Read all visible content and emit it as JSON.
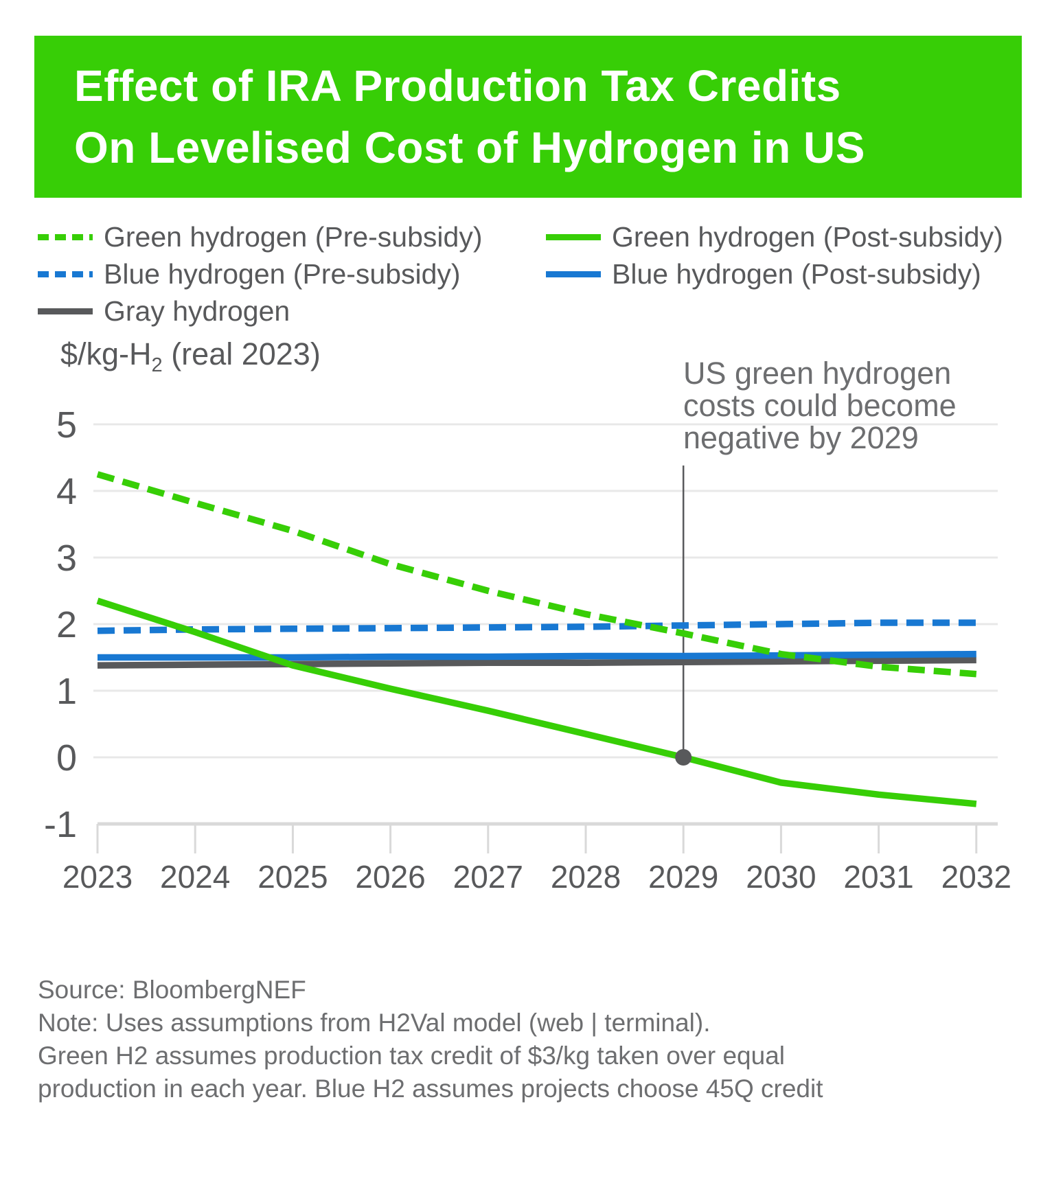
{
  "header": {
    "title_line1": "Effect of IRA Production Tax Credits",
    "title_line2": "On Levelised Cost of Hydrogen in US"
  },
  "legend": {
    "items": [
      {
        "label": "Green hydrogen (Pre-subsidy)",
        "style": "dashed",
        "color": "green"
      },
      {
        "label": "Green hydrogen (Post-subsidy)",
        "style": "solid",
        "color": "green"
      },
      {
        "label": "Blue hydrogen (Pre-subsidy)",
        "style": "dashed",
        "color": "blue"
      },
      {
        "label": "Blue hydrogen (Post-subsidy)",
        "style": "solid",
        "color": "blue"
      },
      {
        "label": "Gray hydrogen",
        "style": "solid",
        "color": "gray"
      }
    ]
  },
  "colors": {
    "green": "#37CE06",
    "blue": "#1878D2",
    "gray": "#58595B",
    "grid": "#E8E8E8",
    "axis": "#D9D9D9",
    "text_dark": "#58595B",
    "text_mid": "#6D6E70",
    "banner_bg": "#37CE06",
    "banner_text": "#FFFFFF",
    "marker": "#58595B"
  },
  "chart_data": {
    "type": "line",
    "x": [
      2023,
      2024,
      2025,
      2026,
      2027,
      2028,
      2029,
      2030,
      2031,
      2032
    ],
    "series": [
      {
        "id": "gray-hydrogen",
        "name": "Gray hydrogen",
        "color": "gray",
        "style": "solid",
        "values": [
          1.38,
          1.39,
          1.4,
          1.41,
          1.42,
          1.42,
          1.43,
          1.44,
          1.45,
          1.46
        ]
      },
      {
        "id": "blue-post-subsidy",
        "name": "Blue hydrogen (Post-subsidy)",
        "color": "blue",
        "style": "solid",
        "values": [
          1.5,
          1.5,
          1.5,
          1.51,
          1.51,
          1.52,
          1.52,
          1.53,
          1.54,
          1.55
        ]
      },
      {
        "id": "blue-pre-subsidy",
        "name": "Blue hydrogen (Pre-subsidy)",
        "color": "blue",
        "style": "dashed",
        "values": [
          1.9,
          1.92,
          1.93,
          1.94,
          1.95,
          1.96,
          1.98,
          2.0,
          2.02,
          2.02
        ]
      },
      {
        "id": "green-post-subsidy",
        "name": "Green hydrogen (Post-subsidy)",
        "color": "green",
        "style": "solid",
        "values": [
          2.35,
          1.88,
          1.38,
          1.03,
          0.7,
          0.35,
          0.0,
          -0.38,
          -0.56,
          -0.7
        ]
      },
      {
        "id": "green-pre-subsidy",
        "name": "Green hydrogen (Pre-subsidy)",
        "color": "green",
        "style": "dashed",
        "values": [
          4.25,
          3.82,
          3.4,
          2.9,
          2.5,
          2.15,
          1.86,
          1.55,
          1.36,
          1.25
        ]
      }
    ],
    "ylim": [
      -1,
      5
    ],
    "yticks": [
      5,
      4,
      3,
      2,
      1,
      0,
      -1
    ],
    "y_axis_title": "$/kg-H2 (real 2023)",
    "y_axis_title_parts": {
      "prefix": "$/kg-H",
      "sub": "2",
      "suffix": " (real 2023)"
    },
    "annotation": {
      "lines": [
        "US green hydrogen",
        "costs could become",
        "negative by 2029"
      ],
      "marker_x": 2029,
      "marker_y": 0
    },
    "grid": "horizontal",
    "legend_position": "top-left"
  },
  "footer": {
    "lines": [
      "Source: BloombergNEF",
      "Note: Uses assumptions from H2Val model (web | terminal).",
      "Green H2 assumes production tax credit of $3/kg taken over equal",
      "production in each year. Blue H2 assumes projects choose 45Q credit"
    ]
  }
}
